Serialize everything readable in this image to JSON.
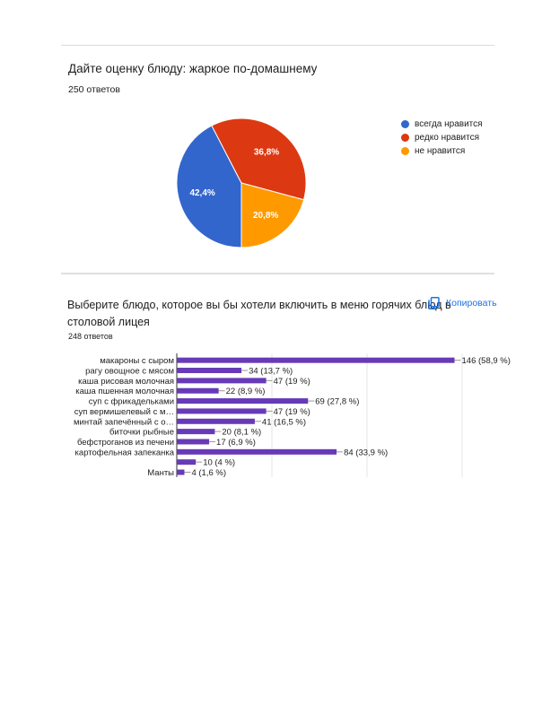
{
  "section1": {
    "title": "Дайте оценку блюду: жаркое по-домашнему",
    "responses": "250 ответов"
  },
  "section2": {
    "title_line1": "Выберите блюдо, которое вы бы хотели включить в меню горячих блюд в",
    "title_line2": "столовой лицея",
    "responses": "248 ответов",
    "copy_label": "Копировать",
    "copy_icon": "copy-icon"
  },
  "chart_data": [
    {
      "type": "pie",
      "labels": [
        "всегда нравится",
        "редко нравится",
        "не нравится"
      ],
      "values": [
        42.4,
        36.8,
        20.8
      ],
      "value_labels": [
        "42,4%",
        "36,8%",
        "20,8%"
      ],
      "colors": [
        "#3366cc",
        "#dc3912",
        "#ff9900"
      ],
      "legend_position": "right"
    },
    {
      "type": "bar",
      "orientation": "horizontal",
      "categories": [
        "макароны с сыром",
        "рагу овощное с мясом",
        "каша рисовая молочная",
        "каша пшенная молочная",
        "суп с фрикадельками",
        "суп вермишелевый с м…",
        "минтай запечённый с о…",
        "биточки рыбные",
        "бефстроганов из печени",
        "картофельная запеканка",
        "",
        "Манты"
      ],
      "values": [
        146,
        34,
        47,
        22,
        69,
        47,
        41,
        20,
        17,
        84,
        10,
        4
      ],
      "value_labels": [
        "146 (58,9 %)",
        "34 (13,7 %)",
        "47 (19 %)",
        "22 (8,9 %)",
        "69 (27,8 %)",
        "47 (19 %)",
        "41 (16,5 %)",
        "20 (8,1 %)",
        "17 (6,9 %)",
        "84 (33,9 %)",
        "10 (4 %)",
        "4 (1,6 %)"
      ],
      "color": "#673ab7",
      "xlim": [
        0,
        150
      ],
      "grid": true
    }
  ]
}
